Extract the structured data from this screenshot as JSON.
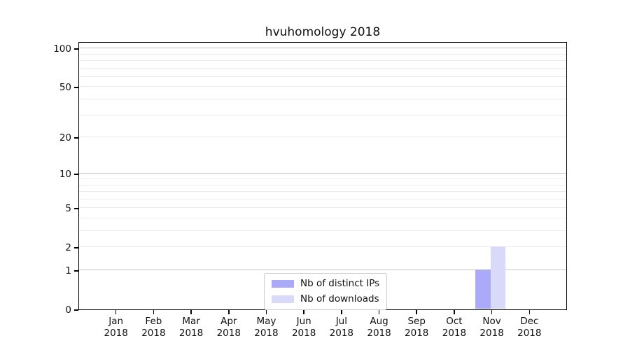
{
  "page": {
    "background_color": "#ffffff"
  },
  "chart_data": {
    "type": "bar",
    "title": "hvuhomology 2018",
    "categories": [
      "Jan 2018",
      "Feb 2018",
      "Mar 2018",
      "Apr 2018",
      "May 2018",
      "Jun 2018",
      "Jul 2018",
      "Aug 2018",
      "Sep 2018",
      "Oct 2018",
      "Nov 2018",
      "Dec 2018"
    ],
    "series": [
      {
        "name": "Nb of distinct IPs",
        "color": "#aaaaf9",
        "values": [
          0,
          0,
          0,
          0,
          0,
          0,
          0,
          0,
          0,
          0,
          1,
          0
        ]
      },
      {
        "name": "Nb of downloads",
        "color": "#d9d9fa",
        "values": [
          0,
          0,
          0,
          0,
          0,
          0,
          0,
          0,
          0,
          0,
          2,
          0
        ]
      }
    ],
    "xlabel": "",
    "ylabel": "",
    "y_axis": {
      "scale": "log1p",
      "ticks": [
        0,
        1,
        2,
        5,
        10,
        20,
        50,
        100
      ],
      "minor_ticks": [
        3,
        4,
        6,
        7,
        8,
        9,
        30,
        40,
        60,
        70,
        80,
        90
      ],
      "ylim": [
        0,
        113
      ]
    },
    "grid": "horizontal",
    "grid_major_color": "#c6c6c6",
    "grid_minor_color": "#ebebeb",
    "legend_position": "bottom-center",
    "axis_color": "#000000"
  }
}
